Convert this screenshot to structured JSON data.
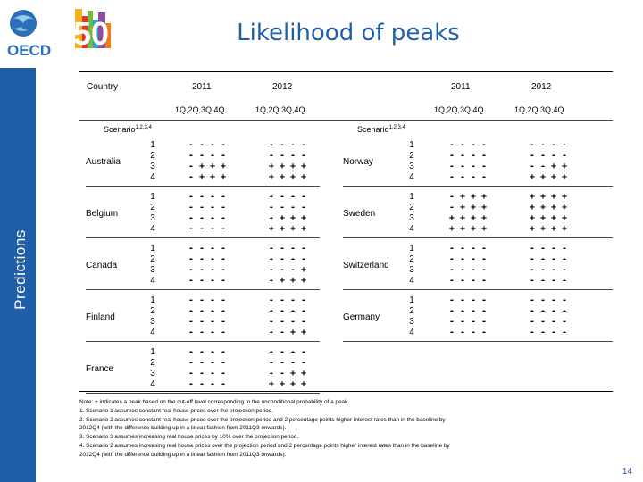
{
  "header": {
    "logo_text": "OECD",
    "logo_anniversary": "50",
    "title": "Likelihood of peaks",
    "sidebar_label": "Predictions"
  },
  "table": {
    "col_country": "Country",
    "years": [
      "2011",
      "2012",
      "2011",
      "2012"
    ],
    "quarters": "1Q,2Q,3Q,4Q",
    "scenario_label": "Scenario",
    "scenario_sup": "1,2,3,4",
    "scenario_numbers": [
      "1",
      "2",
      "3",
      "4"
    ],
    "left": [
      {
        "country": "Australia",
        "y2011": [
          "- - - -",
          "- - - -",
          "- + + +",
          "- + + +"
        ],
        "y2012": [
          "- - - -",
          "- - - -",
          "+ + + +",
          "+ + + +"
        ]
      },
      {
        "country": "Belgium",
        "y2011": [
          "- - - -",
          "- - - -",
          "- - - -",
          "- - - -"
        ],
        "y2012": [
          "- - - -",
          "- - - -",
          "- + + +",
          "+ + + +"
        ]
      },
      {
        "country": "Canada",
        "y2011": [
          "- - - -",
          "- - - -",
          "- - - -",
          "- - - -"
        ],
        "y2012": [
          "- - - -",
          "- - - -",
          "- - - +",
          "- + + +"
        ]
      },
      {
        "country": "Finland",
        "y2011": [
          "- - - -",
          "- - - -",
          "- - - -",
          "- - - -"
        ],
        "y2012": [
          "- - - -",
          "- - - -",
          "- - - -",
          "- - + +"
        ]
      },
      {
        "country": "France",
        "y2011": [
          "- - - -",
          "- - - -",
          "- - - -",
          "- - - -"
        ],
        "y2012": [
          "- - - -",
          "- - - -",
          "- - + +",
          "+ + + +"
        ]
      }
    ],
    "right": [
      {
        "country": "Norway",
        "y2011": [
          "- - - -",
          "- - - -",
          "- - - -",
          "- - - -"
        ],
        "y2012": [
          "- - - -",
          "- - - -",
          "- - + +",
          "+ + + +"
        ]
      },
      {
        "country": "Sweden",
        "y2011": [
          "- + + +",
          "- + + +",
          "+ + + +",
          "+ + + +"
        ],
        "y2012": [
          "+ + + +",
          "+ + + +",
          "+ + + +",
          "+ + + +"
        ]
      },
      {
        "country": "Switzerland",
        "y2011": [
          "- - - -",
          "- - - -",
          "- - - -",
          "- - - -"
        ],
        "y2012": [
          "- - - -",
          "- - - -",
          "- - - -",
          "- - - -"
        ]
      },
      {
        "country": "Germany",
        "y2011": [
          "- - - -",
          "- - - -",
          "- - - -",
          "- - - -"
        ],
        "y2012": [
          "- - - -",
          "- - - -",
          "- - - -",
          "- - - -"
        ]
      }
    ]
  },
  "notes": [
    "Note: + indicates a peak based on the cut-off level corresponding to the unconditional probability of a peak.",
    "1. Scenario 1 assumes constant real house prices over the projection period.",
    "2. Scenario 2 assumes constant real house prices over the projection period and 2 percentage points higher interest rates than in the baseline by",
    "2012Q4 (with the difference building up in a linear fashion from 2011Q3 onwards).",
    "3. Scenario 3 assumes increasing real house prices by 10% over the projection period.",
    "4. Scenario 2 assumes increasing real house prices over the projection period and 2 percentage points higher interest rates than in the baseline by",
    "2012Q4 (with the difference building up in a linear fashion from 2011Q3 onwards)."
  ],
  "page_number": "14",
  "colors": {
    "brand_blue": "#1f5fa8"
  }
}
